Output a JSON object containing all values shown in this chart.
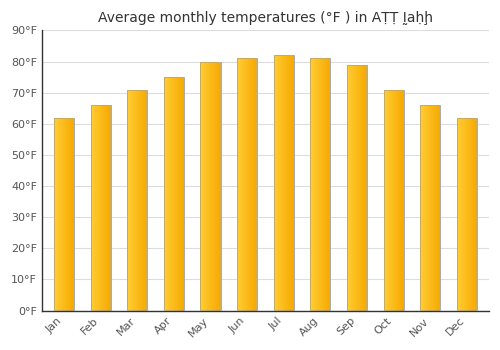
{
  "title": "Average monthly temperatures (°F ) in AṬṬ Ḭaḥḩ",
  "months": [
    "Jan",
    "Feb",
    "Mar",
    "Apr",
    "May",
    "Jun",
    "Jul",
    "Aug",
    "Sep",
    "Oct",
    "Nov",
    "Dec"
  ],
  "values": [
    62,
    66,
    71,
    75,
    80,
    81,
    82,
    81,
    79,
    71,
    66,
    62
  ],
  "bar_color_left": "#FFCC33",
  "bar_color_right": "#F5A800",
  "bar_edge_color": "#AAAAAA",
  "ylim": [
    0,
    90
  ],
  "yticks": [
    0,
    10,
    20,
    30,
    40,
    50,
    60,
    70,
    80,
    90
  ],
  "ytick_labels": [
    "0°F",
    "10°F",
    "20°F",
    "30°F",
    "40°F",
    "50°F",
    "60°F",
    "70°F",
    "80°F",
    "90°F"
  ],
  "background_color": "#FFFFFF",
  "grid_color": "#DDDDDD",
  "title_fontsize": 10,
  "tick_fontsize": 8,
  "bar_width": 0.55
}
